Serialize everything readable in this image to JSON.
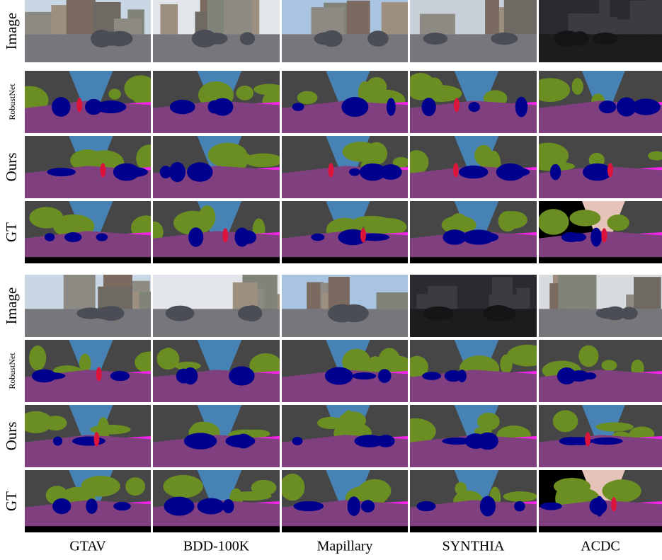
{
  "figure": {
    "blocks": [
      {
        "rows": [
          "Image",
          "RobustNet",
          "Ours",
          "GT"
        ]
      },
      {
        "rows": [
          "Image",
          "RobustNet",
          "Ours",
          "GT"
        ]
      }
    ],
    "columns": [
      "GTAV",
      "BDD-100K",
      "Mapillary",
      "SYNTHIA",
      "ACDC"
    ]
  }
}
